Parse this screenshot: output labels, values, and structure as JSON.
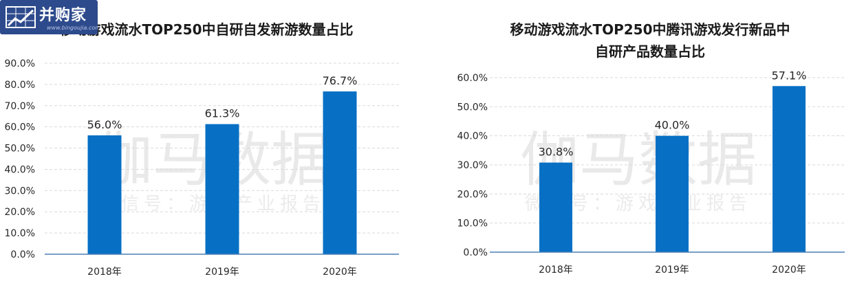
{
  "logo": {
    "name": "并购家",
    "url": "www.bingoujia.com"
  },
  "watermark": {
    "main": "伽马数据",
    "sub": "微信号：游戏产业报告"
  },
  "colors": {
    "bar": "#0770c4",
    "axis": "#4a7fb4",
    "grid": "#d9d9d9",
    "text": "#262626"
  },
  "chart_data": [
    {
      "type": "bar",
      "title_lines": [
        "移动游戏流水TOP250中自研自发新游数量占比"
      ],
      "categories": [
        "2018年",
        "2019年",
        "2020年"
      ],
      "values": [
        56.0,
        61.3,
        76.7
      ],
      "value_labels": [
        "56.0%",
        "61.3%",
        "76.7%"
      ],
      "ylim": [
        0,
        90
      ],
      "yticks": [
        "0.0%",
        "10.0%",
        "20.0%",
        "30.0%",
        "40.0%",
        "50.0%",
        "60.0%",
        "70.0%",
        "80.0%",
        "90.0%"
      ],
      "grid": true
    },
    {
      "type": "bar",
      "title_lines": [
        "移动游戏流水TOP250中腾讯游戏发行新品中",
        "自研产品数量占比"
      ],
      "categories": [
        "2018年",
        "2019年",
        "2020年"
      ],
      "values": [
        30.8,
        40.0,
        57.1
      ],
      "value_labels": [
        "30.8%",
        "40.0%",
        "57.1%"
      ],
      "ylim": [
        0,
        60
      ],
      "yticks": [
        "0.0%",
        "10.0%",
        "20.0%",
        "30.0%",
        "40.0%",
        "50.0%",
        "60.0%"
      ],
      "grid": true
    }
  ]
}
